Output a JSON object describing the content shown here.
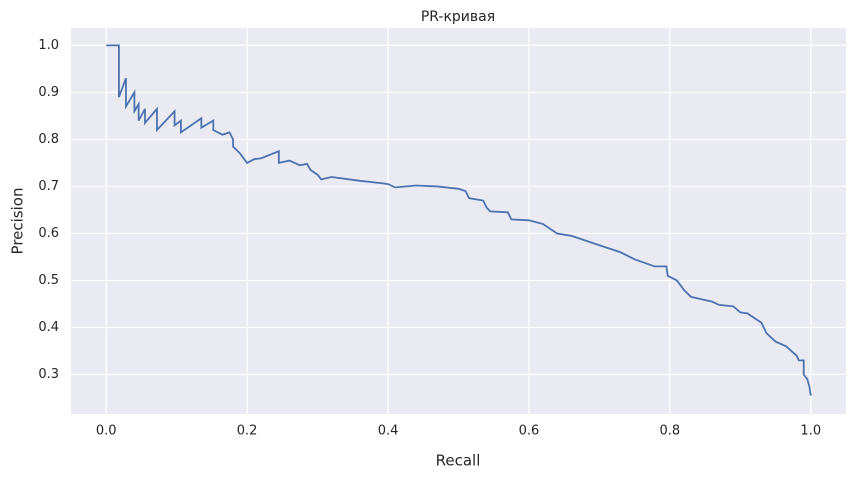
{
  "chart_data": {
    "type": "line",
    "title": "PR-кривая",
    "xlabel": "Recall",
    "ylabel": "Precision",
    "xlim": [
      -0.05,
      1.05
    ],
    "ylim": [
      0.216,
      1.037
    ],
    "xticks": [
      {
        "value": 0,
        "label": "0.0"
      },
      0.2,
      0.4,
      0.6,
      0.8,
      {
        "value": 1,
        "label": "1.0"
      }
    ],
    "yticks": [
      0.3,
      0.4,
      0.5,
      0.6,
      0.7,
      0.8,
      0.9,
      {
        "value": 1,
        "label": "1.0"
      }
    ],
    "grid": true,
    "series": [
      {
        "color": "#4c72b0",
        "x": [
          0,
          0.018,
          0.018,
          0.028,
          0.028,
          0.04,
          0.04,
          0.046,
          0.046,
          0.055,
          0.055,
          0.072,
          0.072,
          0.097,
          0.097,
          0.106,
          0.106,
          0.135,
          0.135,
          0.152,
          0.152,
          0.165,
          0.175,
          0.18,
          0.18,
          0.19,
          0.2,
          0.21,
          0.22,
          0.245,
          0.245,
          0.26,
          0.275,
          0.285,
          0.29,
          0.3,
          0.305,
          0.32,
          0.36,
          0.39,
          0.4,
          0.41,
          0.44,
          0.47,
          0.5,
          0.51,
          0.515,
          0.535,
          0.54,
          0.545,
          0.57,
          0.575,
          0.6,
          0.62,
          0.64,
          0.66,
          0.7,
          0.73,
          0.75,
          0.765,
          0.778,
          0.795,
          0.797,
          0.81,
          0.82,
          0.83,
          0.86,
          0.87,
          0.89,
          0.9,
          0.91,
          0.93,
          0.937,
          0.95,
          0.965,
          0.98,
          0.983,
          0.99,
          0.99,
          0.995,
          0.998,
          1.0
        ],
        "values": [
          1.0,
          1.0,
          0.89,
          0.93,
          0.87,
          0.9,
          0.86,
          0.875,
          0.84,
          0.865,
          0.835,
          0.865,
          0.82,
          0.86,
          0.83,
          0.84,
          0.815,
          0.845,
          0.825,
          0.84,
          0.82,
          0.81,
          0.815,
          0.8,
          0.785,
          0.77,
          0.75,
          0.758,
          0.76,
          0.775,
          0.75,
          0.755,
          0.745,
          0.748,
          0.735,
          0.725,
          0.715,
          0.72,
          0.712,
          0.707,
          0.705,
          0.698,
          0.702,
          0.7,
          0.695,
          0.69,
          0.675,
          0.67,
          0.655,
          0.647,
          0.645,
          0.63,
          0.628,
          0.62,
          0.6,
          0.595,
          0.575,
          0.56,
          0.545,
          0.537,
          0.53,
          0.53,
          0.51,
          0.5,
          0.48,
          0.465,
          0.455,
          0.448,
          0.445,
          0.432,
          0.43,
          0.41,
          0.388,
          0.37,
          0.36,
          0.34,
          0.33,
          0.33,
          0.3,
          0.29,
          0.275,
          0.255
        ]
      }
    ]
  }
}
